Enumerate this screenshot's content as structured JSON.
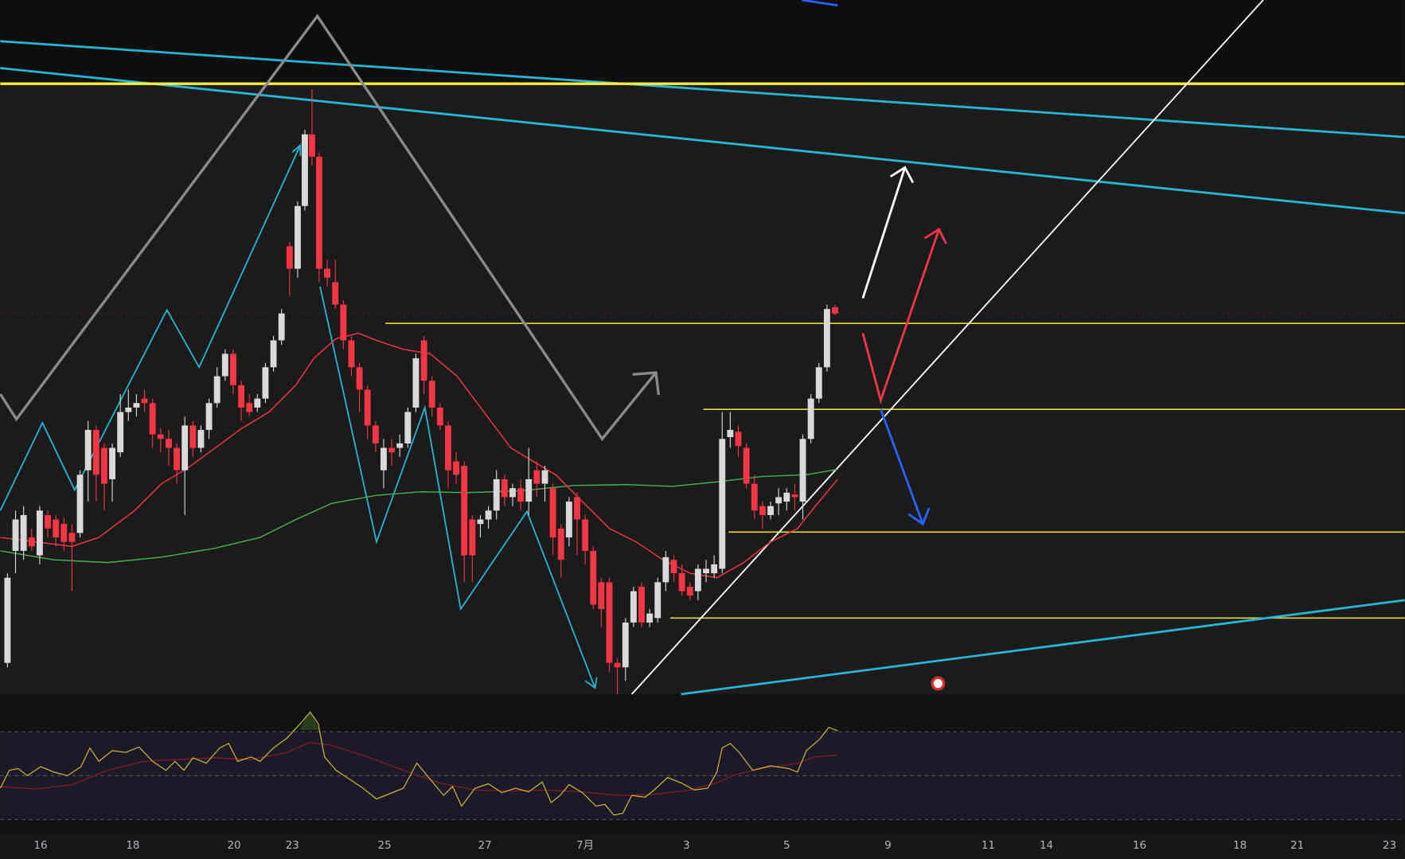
{
  "x_axis": {
    "labels": [
      "16",
      "18",
      "20",
      "23",
      "25",
      "27",
      "7月",
      "3",
      "5",
      "9",
      "11",
      "14",
      "16",
      "18",
      "21",
      "23"
    ]
  }
}
